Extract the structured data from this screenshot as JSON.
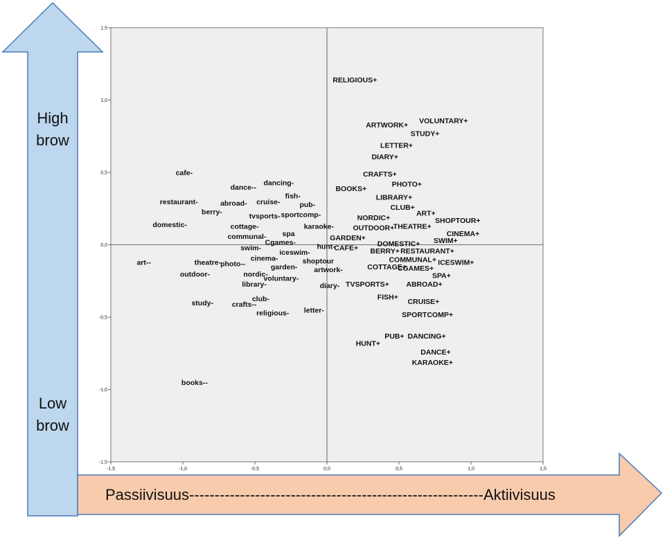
{
  "colors": {
    "vertical_arrow_fill": "#bdd7ee",
    "vertical_arrow_stroke": "#4a7ab5",
    "horizontal_arrow_fill": "#f8cbad",
    "horizontal_arrow_stroke": "#4a7ab5",
    "plot_background": "#efefef",
    "point_text": "#111111"
  },
  "labels": {
    "high": "High brow",
    "low": "Low brow",
    "horizontal_axis": "Passiivisuus----------------------------------------------------------Aktiivisuus"
  },
  "chart_data": {
    "type": "scatter",
    "title": "",
    "xlabel": "",
    "ylabel": "",
    "xlim": [
      -1.5,
      1.5
    ],
    "ylim": [
      -1.5,
      1.5
    ],
    "xticks": [
      "-1,5",
      "-1,0",
      "-0,5",
      "0,0",
      "0,5",
      "1,0",
      "1,5"
    ],
    "yticks": [
      "1,5",
      "1,0",
      "0,5",
      "0,0",
      "-0,5",
      "-1,0",
      "-1,5"
    ],
    "xtick_values": [
      -1.5,
      -1.0,
      -0.5,
      0.0,
      0.5,
      1.0,
      1.5
    ],
    "ytick_values": [
      1.5,
      1.0,
      0.5,
      0.0,
      -0.5,
      -1.0,
      -1.5
    ],
    "reference_lines": {
      "x": 0.0,
      "y": 0.0
    },
    "grid": false,
    "points": [
      {
        "label": "RELIGIOUS+",
        "x": 0.04,
        "y": 1.14
      },
      {
        "label": "VOLUNTARY+",
        "x": 0.64,
        "y": 0.86
      },
      {
        "label": "ARTWORK+",
        "x": 0.27,
        "y": 0.83
      },
      {
        "label": "STUDY+",
        "x": 0.58,
        "y": 0.77
      },
      {
        "label": "LETTER+",
        "x": 0.37,
        "y": 0.69
      },
      {
        "label": "DIARY+",
        "x": 0.31,
        "y": 0.61
      },
      {
        "label": "CRAFTS+",
        "x": 0.25,
        "y": 0.49
      },
      {
        "label": "PHOTO+",
        "x": 0.45,
        "y": 0.42
      },
      {
        "label": "BOOKS+",
        "x": 0.06,
        "y": 0.39
      },
      {
        "label": "LIBRARY+",
        "x": 0.34,
        "y": 0.33
      },
      {
        "label": "CLUB+",
        "x": 0.44,
        "y": 0.26
      },
      {
        "label": "ART+",
        "x": 0.62,
        "y": 0.22
      },
      {
        "label": "NORDIC+",
        "x": 0.21,
        "y": 0.19
      },
      {
        "label": "SHOPTOUR+",
        "x": 0.75,
        "y": 0.17
      },
      {
        "label": "OUTDOOR+",
        "x": 0.18,
        "y": 0.12
      },
      {
        "label": "THEATRE+",
        "x": 0.46,
        "y": 0.13
      },
      {
        "label": "CINEMA+",
        "x": 0.83,
        "y": 0.08
      },
      {
        "label": "GARDEN+",
        "x": 0.02,
        "y": 0.05
      },
      {
        "label": "SWIM+",
        "x": 0.74,
        "y": 0.03
      },
      {
        "label": "DOMESTIC+",
        "x": 0.35,
        "y": 0.01
      },
      {
        "label": "CAFE+",
        "x": 0.05,
        "y": -0.02
      },
      {
        "label": "BERRY+",
        "x": 0.3,
        "y": -0.04
      },
      {
        "label": "RESTAURANT+",
        "x": 0.51,
        "y": -0.04
      },
      {
        "label": "COMMUNAL+",
        "x": 0.43,
        "y": -0.1
      },
      {
        "label": "ICESWIM+",
        "x": 0.77,
        "y": -0.12
      },
      {
        "label": "COTTAGE+",
        "x": 0.28,
        "y": -0.15
      },
      {
        "label": "CGAMES+",
        "x": 0.49,
        "y": -0.16
      },
      {
        "label": "SPA+",
        "x": 0.73,
        "y": -0.21
      },
      {
        "label": "TVSPORTS+",
        "x": 0.13,
        "y": -0.27
      },
      {
        "label": "ABROAD+",
        "x": 0.55,
        "y": -0.27
      },
      {
        "label": "FISH+",
        "x": 0.35,
        "y": -0.36
      },
      {
        "label": "CRUISE+",
        "x": 0.56,
        "y": -0.39
      },
      {
        "label": "SPORTCOMP+",
        "x": 0.52,
        "y": -0.48
      },
      {
        "label": "PUB+",
        "x": 0.4,
        "y": -0.63
      },
      {
        "label": "DANCING+",
        "x": 0.56,
        "y": -0.63
      },
      {
        "label": "HUNT+",
        "x": 0.2,
        "y": -0.68
      },
      {
        "label": "DANCE+",
        "x": 0.65,
        "y": -0.74
      },
      {
        "label": "KARAOKE+",
        "x": 0.59,
        "y": -0.81
      },
      {
        "label": "cafe-",
        "x": -1.05,
        "y": 0.5
      },
      {
        "label": "dancing-",
        "x": -0.44,
        "y": 0.43
      },
      {
        "label": "dance--",
        "x": -0.67,
        "y": 0.4
      },
      {
        "label": "fish-",
        "x": -0.29,
        "y": 0.34
      },
      {
        "label": "restaurant-",
        "x": -1.16,
        "y": 0.3
      },
      {
        "label": "abroad-",
        "x": -0.74,
        "y": 0.29
      },
      {
        "label": "cruise-",
        "x": -0.49,
        "y": 0.3
      },
      {
        "label": "pub-",
        "x": -0.19,
        "y": 0.28
      },
      {
        "label": "berry-",
        "x": -0.87,
        "y": 0.23
      },
      {
        "label": "tvsports-",
        "x": -0.54,
        "y": 0.2
      },
      {
        "label": "sportcomp-",
        "x": -0.32,
        "y": 0.21
      },
      {
        "label": "domestic-",
        "x": -1.21,
        "y": 0.14
      },
      {
        "label": "cottage-",
        "x": -0.67,
        "y": 0.13
      },
      {
        "label": "karaoke-",
        "x": -0.16,
        "y": 0.13
      },
      {
        "label": "spa",
        "x": -0.31,
        "y": 0.08
      },
      {
        "label": "communal-",
        "x": -0.69,
        "y": 0.06
      },
      {
        "label": "Cgames-",
        "x": -0.43,
        "y": 0.02
      },
      {
        "label": "hunt-",
        "x": -0.07,
        "y": -0.01
      },
      {
        "label": "swim-",
        "x": -0.6,
        "y": -0.02
      },
      {
        "label": "iceswim-",
        "x": -0.33,
        "y": -0.05
      },
      {
        "label": "cinema-",
        "x": -0.53,
        "y": -0.09
      },
      {
        "label": "shoptour",
        "x": -0.17,
        "y": -0.11
      },
      {
        "label": "art--",
        "x": -1.32,
        "y": -0.12
      },
      {
        "label": "theatre-",
        "x": -0.92,
        "y": -0.12
      },
      {
        "label": "photo--",
        "x": -0.74,
        "y": -0.13
      },
      {
        "label": "garden-",
        "x": -0.39,
        "y": -0.15
      },
      {
        "label": "artwork-",
        "x": -0.09,
        "y": -0.17
      },
      {
        "label": "outdoor-",
        "x": -1.02,
        "y": -0.2
      },
      {
        "label": "nordic-",
        "x": -0.58,
        "y": -0.2
      },
      {
        "label": "voluntary-",
        "x": -0.44,
        "y": -0.23
      },
      {
        "label": "library-",
        "x": -0.59,
        "y": -0.27
      },
      {
        "label": "diary-",
        "x": -0.05,
        "y": -0.28
      },
      {
        "label": "club-",
        "x": -0.52,
        "y": -0.37
      },
      {
        "label": "study-",
        "x": -0.94,
        "y": -0.4
      },
      {
        "label": "crafts--",
        "x": -0.66,
        "y": -0.41
      },
      {
        "label": "letter-",
        "x": -0.16,
        "y": -0.45
      },
      {
        "label": "religious-",
        "x": -0.49,
        "y": -0.47
      },
      {
        "label": "books--",
        "x": -1.01,
        "y": -0.95
      }
    ]
  }
}
